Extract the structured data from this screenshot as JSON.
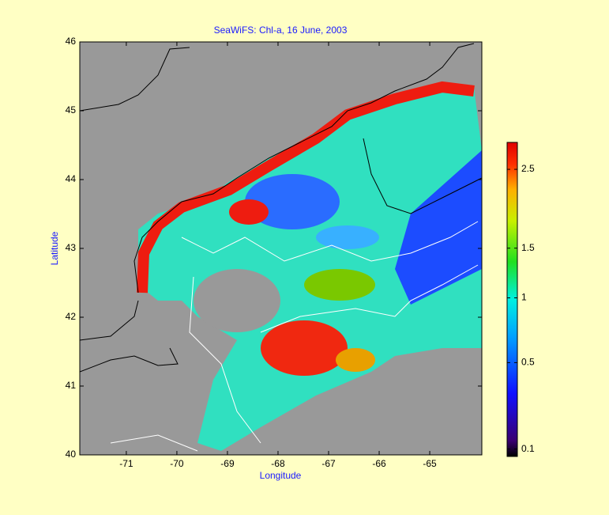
{
  "title": "SeaWiFS: Chl-a, 16 June,  2003",
  "x_axis": {
    "label": "Longitude",
    "lim": [
      -71.92,
      -63.97
    ],
    "ticks": [
      -71,
      -70,
      -69,
      -68,
      -67,
      -66,
      -65
    ]
  },
  "y_axis": {
    "label": "Latitude",
    "lim": [
      40,
      46
    ],
    "ticks": [
      40,
      41,
      42,
      43,
      44,
      45,
      46
    ]
  },
  "colorbar": {
    "scale": "sqrt",
    "lim": [
      0.08,
      2.9
    ],
    "ticks": [
      0.1,
      0.5,
      1,
      1.5,
      2.5
    ]
  }
}
